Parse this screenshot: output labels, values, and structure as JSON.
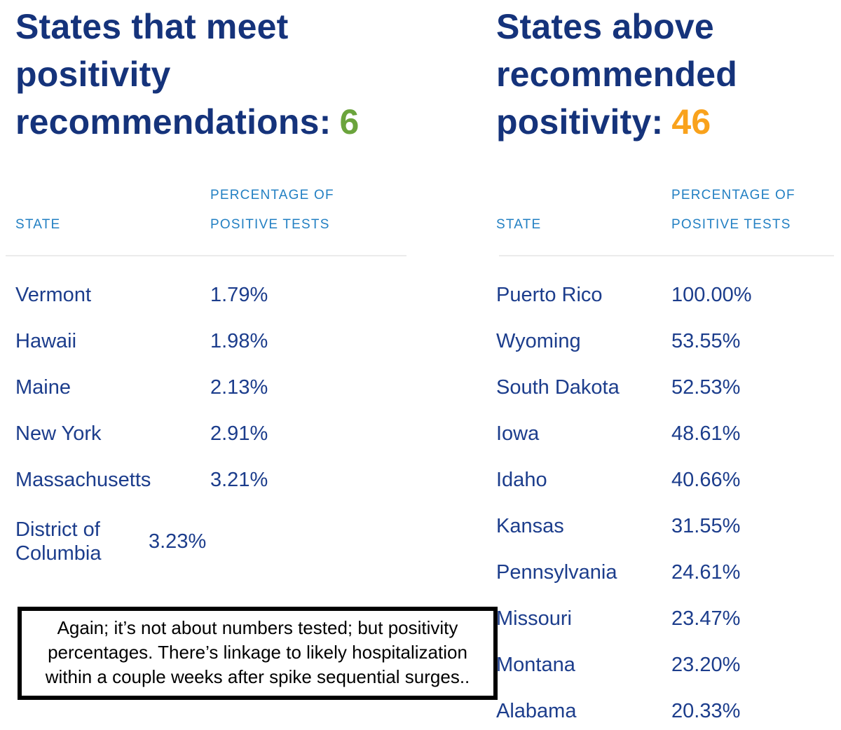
{
  "colors": {
    "title_navy": "#15337b",
    "row_navy": "#1c3d8c",
    "header_blue": "#2380c3",
    "meet_count_green": "#6ba43c",
    "above_count_orange": "#f9a21c",
    "divider_gray": "#ebebeb",
    "note_black": "#000000"
  },
  "left_panel": {
    "title_lines": [
      "States that meet",
      "positivity",
      "recommendations:"
    ],
    "count": "6",
    "col_state_header": "STATE",
    "col_pct_header_lines": [
      "PERCENTAGE OF",
      "POSITIVE TESTS"
    ],
    "rows": [
      {
        "state": "Vermont",
        "value": "1.79%"
      },
      {
        "state": "Hawaii",
        "value": "1.98%"
      },
      {
        "state": "Maine",
        "value": "2.13%"
      },
      {
        "state": "New York",
        "value": "2.91%"
      },
      {
        "state": "Massachusetts",
        "value": "3.21%"
      },
      {
        "state": "District of Columbia",
        "value": "3.23%",
        "wrap": true
      }
    ],
    "note_lines": [
      "Again; it’s not about numbers tested; but positivity",
      "percentages. There’s linkage to likely hospitalization",
      "within a couple weeks after spike sequential surges.."
    ]
  },
  "right_panel": {
    "title_lines": [
      "States above",
      "recommended",
      "positivity:"
    ],
    "count": "46",
    "col_state_header": "STATE",
    "col_pct_header_lines": [
      "PERCENTAGE OF",
      "POSITIVE TESTS"
    ],
    "rows": [
      {
        "state": "Puerto Rico",
        "value": "100.00%"
      },
      {
        "state": "Wyoming",
        "value": "53.55%"
      },
      {
        "state": "South Dakota",
        "value": "52.53%"
      },
      {
        "state": "Iowa",
        "value": "48.61%"
      },
      {
        "state": "Idaho",
        "value": "40.66%"
      },
      {
        "state": "Kansas",
        "value": "31.55%"
      },
      {
        "state": "Pennsylvania",
        "value": "24.61%"
      },
      {
        "state": "Missouri",
        "value": "23.47%"
      },
      {
        "state": "Montana",
        "value": "23.20%"
      },
      {
        "state": "Alabama",
        "value": "20.33%"
      }
    ]
  },
  "chart_data": [
    {
      "type": "table",
      "title": "States that meet positivity recommendations: 6",
      "columns": [
        "STATE",
        "PERCENTAGE OF POSITIVE TESTS"
      ],
      "rows": [
        [
          "Vermont",
          "1.79%"
        ],
        [
          "Hawaii",
          "1.98%"
        ],
        [
          "Maine",
          "2.13%"
        ],
        [
          "New York",
          "2.91%"
        ],
        [
          "Massachusetts",
          "3.21%"
        ],
        [
          "District of Columbia",
          "3.23%"
        ]
      ],
      "count_value": 6,
      "count_color": "#6ba43c"
    },
    {
      "type": "table",
      "title": "States above recommended positivity: 46",
      "columns": [
        "STATE",
        "PERCENTAGE OF POSITIVE TESTS"
      ],
      "rows": [
        [
          "Puerto Rico",
          "100.00%"
        ],
        [
          "Wyoming",
          "53.55%"
        ],
        [
          "South Dakota",
          "52.53%"
        ],
        [
          "Iowa",
          "48.61%"
        ],
        [
          "Idaho",
          "40.66%"
        ],
        [
          "Kansas",
          "31.55%"
        ],
        [
          "Pennsylvania",
          "24.61%"
        ],
        [
          "Missouri",
          "23.47%"
        ],
        [
          "Montana",
          "23.20%"
        ],
        [
          "Alabama",
          "20.33%"
        ]
      ],
      "count_value": 46,
      "count_color": "#f9a21c"
    },
    {
      "type": "annotation",
      "text": "Again; it’s not about numbers tested; but positivity percentages. There’s linkage to likely hospitalization within a couple weeks after spike sequential surges.."
    }
  ]
}
